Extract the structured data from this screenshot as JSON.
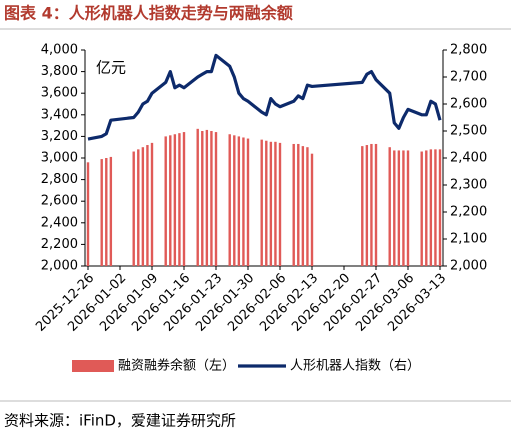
{
  "title": "图表 4：人形机器人指数走势与两融余额",
  "source": "资料来源：iFinD，爱建证券研究所",
  "chart_data": {
    "type": "combo",
    "unit_label": "亿元",
    "x": [
      "2025-12-26",
      "2025-12-29",
      "2025-12-30",
      "2025-12-31",
      "2026-01-05",
      "2026-01-06",
      "2026-01-07",
      "2026-01-08",
      "2026-01-09",
      "2026-01-12",
      "2026-01-13",
      "2026-01-14",
      "2026-01-15",
      "2026-01-16",
      "2026-01-19",
      "2026-01-20",
      "2026-01-21",
      "2026-01-22",
      "2026-01-23",
      "2026-01-26",
      "2026-01-27",
      "2026-01-28",
      "2026-01-29",
      "2026-01-30",
      "2026-02-02",
      "2026-02-03",
      "2026-02-04",
      "2026-02-05",
      "2026-02-06",
      "2026-02-09",
      "2026-02-10",
      "2026-02-11",
      "2026-02-12",
      "2026-02-13",
      "2026-02-24",
      "2026-02-25",
      "2026-02-26",
      "2026-02-27",
      "2026-03-02",
      "2026-03-03",
      "2026-03-04",
      "2026-03-05",
      "2026-03-06",
      "2026-03-09",
      "2026-03-10",
      "2026-03-11",
      "2026-03-12",
      "2026-03-13"
    ],
    "xlim": [
      "2025-12-26",
      "2026-03-13"
    ],
    "xticks": [
      "2025-12-26",
      "2026-01-02",
      "2026-01-09",
      "2026-01-16",
      "2026-01-23",
      "2026-01-30",
      "2026-02-06",
      "2026-02-13",
      "2026-02-20",
      "2026-02-27",
      "2026-03-06",
      "2026-03-13"
    ],
    "series": [
      {
        "name": "融资融券余额（左）",
        "type": "bar",
        "axis": "y",
        "color": "#e05a57",
        "values": [
          2960,
          2990,
          3000,
          3010,
          3060,
          3080,
          3100,
          3120,
          3140,
          3200,
          3210,
          3220,
          3230,
          3240,
          3270,
          3250,
          3260,
          3250,
          3240,
          3220,
          3210,
          3200,
          3190,
          3180,
          3170,
          3160,
          3150,
          3150,
          3140,
          3130,
          3130,
          3110,
          3100,
          3040,
          3110,
          3120,
          3130,
          3130,
          3100,
          3070,
          3070,
          3070,
          3070,
          3060,
          3070,
          3080,
          3080,
          3080
        ]
      },
      {
        "name": "人形机器人指数（右）",
        "type": "line",
        "axis": "y2",
        "color": "#0d2a6b",
        "values": [
          2470,
          2480,
          2490,
          2540,
          2550,
          2570,
          2600,
          2610,
          2640,
          2680,
          2720,
          2660,
          2670,
          2660,
          2700,
          2710,
          2720,
          2720,
          2780,
          2740,
          2700,
          2640,
          2620,
          2610,
          2570,
          2560,
          2620,
          2600,
          2590,
          2610,
          2630,
          2620,
          2670,
          2665,
          2680,
          2710,
          2720,
          2690,
          2640,
          2530,
          2510,
          2550,
          2580,
          2560,
          2560,
          2610,
          2600,
          2540
        ]
      }
    ],
    "ylim": [
      2000,
      4000
    ],
    "yticks": [
      {
        "value": 2000,
        "label": "2,000"
      },
      {
        "value": 2200,
        "label": "2,200"
      },
      {
        "value": 2400,
        "label": "2,400"
      },
      {
        "value": 2600,
        "label": "2,600"
      },
      {
        "value": 2800,
        "label": "2,800"
      },
      {
        "value": 3000,
        "label": "3,000"
      },
      {
        "value": 3200,
        "label": "3,200"
      },
      {
        "value": 3400,
        "label": "3,400"
      },
      {
        "value": 3600,
        "label": "3,600"
      },
      {
        "value": 3800,
        "label": "3,800"
      },
      {
        "value": 4000,
        "label": "4,000"
      }
    ],
    "y2lim": [
      2000,
      2800
    ],
    "y2ticks": [
      {
        "value": 2000,
        "label": "2,000"
      },
      {
        "value": 2100,
        "label": "2,100"
      },
      {
        "value": 2200,
        "label": "2,200"
      },
      {
        "value": 2300,
        "label": "2,300"
      },
      {
        "value": 2400,
        "label": "2,400"
      },
      {
        "value": 2500,
        "label": "2,500"
      },
      {
        "value": 2600,
        "label": "2,600"
      },
      {
        "value": 2700,
        "label": "2,700"
      },
      {
        "value": 2800,
        "label": "2,800"
      }
    ]
  }
}
